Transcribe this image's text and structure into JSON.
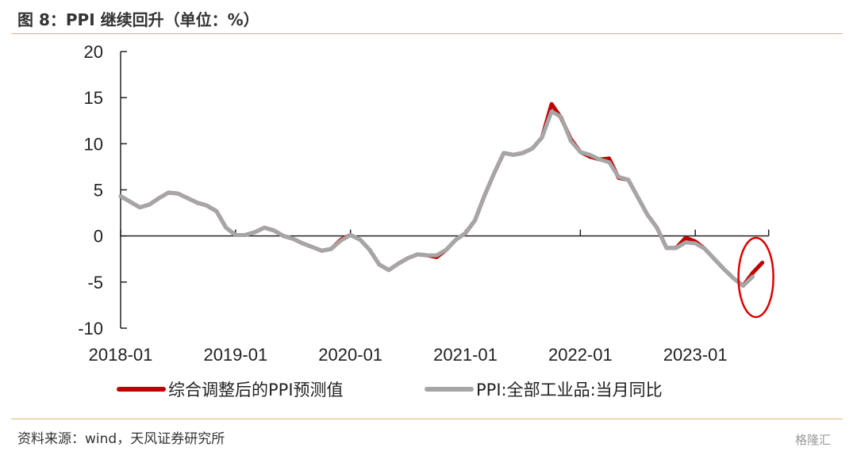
{
  "header": {
    "title": "图 8：PPI 继续回升（单位：%）"
  },
  "footer": {
    "source": "资料来源：wind，天风证券研究所",
    "watermark": "格隆汇"
  },
  "chart_data": {
    "type": "line",
    "ylim": [
      -10,
      20
    ],
    "yticks": [
      -10,
      -5,
      0,
      5,
      10,
      15,
      20
    ],
    "x_tick_labels": [
      "2018-01",
      "2019-01",
      "2020-01",
      "2021-01",
      "2022-01",
      "2023-01"
    ],
    "x": [
      "2018-01",
      "2018-02",
      "2018-03",
      "2018-04",
      "2018-05",
      "2018-06",
      "2018-07",
      "2018-08",
      "2018-09",
      "2018-10",
      "2018-11",
      "2018-12",
      "2019-01",
      "2019-02",
      "2019-03",
      "2019-04",
      "2019-05",
      "2019-06",
      "2019-07",
      "2019-08",
      "2019-09",
      "2019-10",
      "2019-11",
      "2019-12",
      "2020-01",
      "2020-02",
      "2020-03",
      "2020-04",
      "2020-05",
      "2020-06",
      "2020-07",
      "2020-08",
      "2020-09",
      "2020-10",
      "2020-11",
      "2020-12",
      "2021-01",
      "2021-02",
      "2021-03",
      "2021-04",
      "2021-05",
      "2021-06",
      "2021-07",
      "2021-08",
      "2021-09",
      "2021-10",
      "2021-11",
      "2021-12",
      "2022-01",
      "2022-02",
      "2022-03",
      "2022-04",
      "2022-05",
      "2022-06",
      "2022-07",
      "2022-08",
      "2022-09",
      "2022-10",
      "2022-11",
      "2022-12",
      "2023-01",
      "2023-02",
      "2023-03",
      "2023-04",
      "2023-05",
      "2023-06",
      "2023-07",
      "2023-08"
    ],
    "series": [
      {
        "name": "综合调整后的PPI预测值",
        "color": "#c00000",
        "values": [
          4.3,
          3.7,
          3.1,
          3.4,
          4.1,
          4.7,
          4.6,
          4.1,
          3.6,
          3.3,
          2.7,
          0.9,
          0.1,
          0.1,
          0.4,
          0.9,
          0.6,
          0.0,
          -0.3,
          -0.8,
          -1.2,
          -1.6,
          -1.4,
          -0.4,
          0.1,
          -0.4,
          -1.5,
          -3.1,
          -3.7,
          -3.0,
          -2.4,
          -2.0,
          -2.1,
          -2.3,
          -1.5,
          -0.4,
          0.3,
          1.7,
          4.4,
          6.8,
          9.0,
          8.8,
          9.0,
          9.5,
          10.7,
          14.3,
          12.8,
          10.5,
          9.1,
          8.6,
          8.3,
          8.4,
          6.3,
          6.1,
          4.2,
          2.3,
          0.9,
          -1.3,
          -1.3,
          -0.2,
          -0.6,
          -1.4,
          -2.5,
          -3.6,
          -4.6,
          -5.4,
          -4.0,
          -2.9
        ]
      },
      {
        "name": "PPI:全部工业品:当月同比",
        "color": "#a6a6a6",
        "values": [
          4.3,
          3.7,
          3.1,
          3.4,
          4.1,
          4.7,
          4.6,
          4.1,
          3.6,
          3.3,
          2.7,
          0.9,
          0.1,
          0.1,
          0.4,
          0.9,
          0.6,
          0.0,
          -0.3,
          -0.8,
          -1.2,
          -1.6,
          -1.4,
          -0.5,
          0.1,
          -0.4,
          -1.5,
          -3.1,
          -3.7,
          -3.0,
          -2.4,
          -2.0,
          -2.1,
          -2.1,
          -1.5,
          -0.4,
          0.3,
          1.7,
          4.4,
          6.8,
          9.0,
          8.8,
          9.0,
          9.5,
          10.7,
          13.5,
          12.9,
          10.3,
          9.1,
          8.8,
          8.3,
          8.0,
          6.4,
          6.1,
          4.2,
          2.3,
          0.9,
          -1.3,
          -1.3,
          -0.7,
          -0.8,
          -1.4,
          -2.5,
          -3.6,
          -4.6,
          -5.4,
          -4.4,
          null
        ]
      }
    ],
    "annotation": "red ellipse highlighting the latest two months"
  }
}
